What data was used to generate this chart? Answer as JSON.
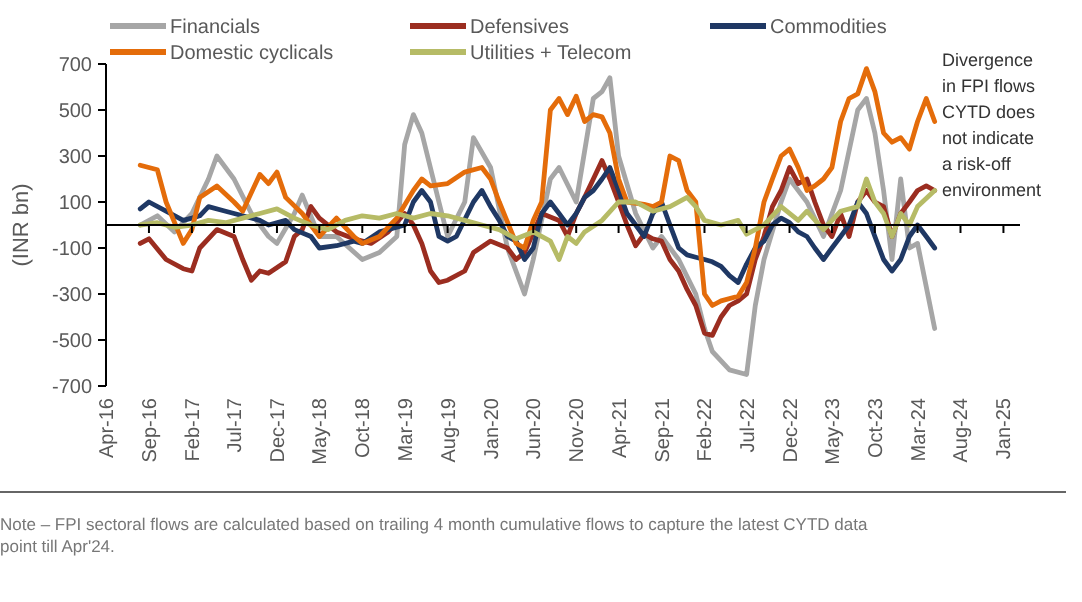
{
  "chart_data": {
    "type": "line",
    "ylabel": "(INR bn)",
    "annotations": [
      "Divergence in FPI flows CYTD does not indicate a risk-off environment",
      "Note – FPI sectoral flows are calculated based on trailing 4 month cumulative flows to capture the latest CYTD data point till Apr'24."
    ],
    "xlim": [
      "2016-04",
      "2025-03"
    ],
    "xticks": [
      {
        "value": "2016-04",
        "label": "Apr-16"
      },
      {
        "value": "2016-09",
        "label": "Sep-16"
      },
      {
        "value": "2017-02",
        "label": "Feb-17"
      },
      {
        "value": "2017-07",
        "label": "Jul-17"
      },
      {
        "value": "2017-12",
        "label": "Dec-17"
      },
      {
        "value": "2018-05",
        "label": "May-18"
      },
      {
        "value": "2018-10",
        "label": "Oct-18"
      },
      {
        "value": "2019-03",
        "label": "Mar-19"
      },
      {
        "value": "2019-08",
        "label": "Aug-19"
      },
      {
        "value": "2020-01",
        "label": "Jan-20"
      },
      {
        "value": "2020-06",
        "label": "Jun-20"
      },
      {
        "value": "2020-11",
        "label": "Nov-20"
      },
      {
        "value": "2021-04",
        "label": "Apr-21"
      },
      {
        "value": "2021-09",
        "label": "Sep-21"
      },
      {
        "value": "2022-02",
        "label": "Feb-22"
      },
      {
        "value": "2022-07",
        "label": "Jul-22"
      },
      {
        "value": "2022-12",
        "label": "Dec-22"
      },
      {
        "value": "2023-05",
        "label": "May-23"
      },
      {
        "value": "2023-10",
        "label": "Oct-23"
      },
      {
        "value": "2024-03",
        "label": "Mar-24"
      },
      {
        "value": "2024-08",
        "label": "Aug-24"
      },
      {
        "value": "2025-01",
        "label": "Jan-25"
      }
    ],
    "ylim": [
      -700,
      700
    ],
    "yticks": [
      -700,
      -500,
      -300,
      -100,
      100,
      300,
      500,
      700
    ],
    "legend": "top",
    "grid": false,
    "marker": "none",
    "line_style": "solid",
    "series": [
      {
        "name": "Financials",
        "color": "#a6a6a6",
        "x": [
          "2016-08",
          "2016-10",
          "2016-12",
          "2017-02",
          "2017-04",
          "2017-05",
          "2017-07",
          "2017-09",
          "2017-11",
          "2017-12",
          "2018-02",
          "2018-03",
          "2018-05",
          "2018-07",
          "2018-10",
          "2018-12",
          "2019-02",
          "2019-03",
          "2019-04",
          "2019-05",
          "2019-07",
          "2019-08",
          "2019-10",
          "2019-11",
          "2020-01",
          "2020-03",
          "2020-05",
          "2020-06",
          "2020-08",
          "2020-09",
          "2020-11",
          "2021-01",
          "2021-02",
          "2021-03",
          "2021-04",
          "2021-06",
          "2021-08",
          "2021-09",
          "2021-11",
          "2022-01",
          "2022-02",
          "2022-03",
          "2022-05",
          "2022-07",
          "2022-08",
          "2022-09",
          "2022-11",
          "2022-12",
          "2023-02",
          "2023-04",
          "2023-06",
          "2023-08",
          "2023-09",
          "2023-10",
          "2023-11",
          "2023-12",
          "2024-01",
          "2024-02",
          "2024-03",
          "2024-05"
        ],
        "values": [
          0,
          40,
          -30,
          50,
          200,
          300,
          200,
          50,
          -50,
          -80,
          50,
          130,
          -50,
          -50,
          -150,
          -120,
          -50,
          350,
          480,
          400,
          100,
          -50,
          100,
          380,
          250,
          -100,
          -300,
          -150,
          200,
          250,
          100,
          550,
          580,
          640,
          300,
          50,
          -100,
          -50,
          -150,
          -300,
          -450,
          -550,
          -630,
          -650,
          -350,
          -150,
          100,
          200,
          100,
          -50,
          150,
          500,
          550,
          400,
          150,
          -150,
          200,
          -100,
          -80,
          -450
        ]
      },
      {
        "name": "Defensives",
        "color": "#9b2d20",
        "x": [
          "2016-08",
          "2016-09",
          "2016-11",
          "2017-01",
          "2017-02",
          "2017-03",
          "2017-05",
          "2017-07",
          "2017-08",
          "2017-09",
          "2017-10",
          "2017-11",
          "2018-01",
          "2018-02",
          "2018-03",
          "2018-04",
          "2018-05",
          "2018-07",
          "2018-09",
          "2018-11",
          "2019-01",
          "2019-03",
          "2019-04",
          "2019-05",
          "2019-06",
          "2019-07",
          "2019-08",
          "2019-10",
          "2019-11",
          "2020-01",
          "2020-03",
          "2020-04",
          "2020-05",
          "2020-07",
          "2020-09",
          "2020-10",
          "2020-11",
          "2020-12",
          "2021-01",
          "2021-02",
          "2021-03",
          "2021-04",
          "2021-05",
          "2021-06",
          "2021-07",
          "2021-08",
          "2021-09",
          "2021-10",
          "2021-11",
          "2021-12",
          "2022-01",
          "2022-02",
          "2022-03",
          "2022-04",
          "2022-05",
          "2022-06",
          "2022-07",
          "2022-08",
          "2022-09",
          "2022-10",
          "2022-11",
          "2022-12",
          "2023-01",
          "2023-02",
          "2023-03",
          "2023-04",
          "2023-05",
          "2023-06",
          "2023-07",
          "2023-08",
          "2023-09",
          "2023-10",
          "2023-11",
          "2023-12",
          "2024-01",
          "2024-02",
          "2024-03",
          "2024-04",
          "2024-05"
        ],
        "values": [
          -80,
          -60,
          -150,
          -190,
          -200,
          -100,
          -20,
          -50,
          -150,
          -240,
          -200,
          -210,
          -160,
          -50,
          -20,
          80,
          30,
          -30,
          -60,
          -80,
          -30,
          50,
          0,
          -80,
          -200,
          -250,
          -240,
          -200,
          -120,
          -70,
          -100,
          -150,
          -120,
          50,
          20,
          -50,
          50,
          120,
          200,
          280,
          200,
          100,
          0,
          -90,
          -40,
          -60,
          -70,
          -150,
          -200,
          -280,
          -350,
          -470,
          -480,
          -400,
          -350,
          -330,
          -300,
          -150,
          -50,
          80,
          150,
          250,
          180,
          200,
          100,
          0,
          -50,
          50,
          -50,
          100,
          150,
          100,
          80,
          -50,
          50,
          100,
          150,
          170,
          150
        ]
      },
      {
        "name": "Commodities",
        "color": "#1f3864",
        "x": [
          "2016-08",
          "2016-09",
          "2016-11",
          "2017-01",
          "2017-02",
          "2017-03",
          "2017-04",
          "2017-06",
          "2017-08",
          "2017-10",
          "2017-11",
          "2018-01",
          "2018-02",
          "2018-04",
          "2018-05",
          "2018-07",
          "2018-09",
          "2018-10",
          "2018-12",
          "2019-02",
          "2019-03",
          "2019-04",
          "2019-05",
          "2019-06",
          "2019-07",
          "2019-08",
          "2019-09",
          "2019-11",
          "2019-12",
          "2020-01",
          "2020-02",
          "2020-03",
          "2020-04",
          "2020-05",
          "2020-06",
          "2020-07",
          "2020-08",
          "2020-09",
          "2020-10",
          "2020-11",
          "2020-12",
          "2021-01",
          "2021-02",
          "2021-03",
          "2021-04",
          "2021-05",
          "2021-06",
          "2021-07",
          "2021-08",
          "2021-09",
          "2021-10",
          "2021-11",
          "2021-12",
          "2022-01",
          "2022-02",
          "2022-03",
          "2022-04",
          "2022-05",
          "2022-06",
          "2022-07",
          "2022-08",
          "2022-09",
          "2022-10",
          "2022-11",
          "2022-12",
          "2023-01",
          "2023-02",
          "2023-03",
          "2023-04",
          "2023-05",
          "2023-06",
          "2023-07",
          "2023-08",
          "2023-09",
          "2023-10",
          "2023-11",
          "2023-12",
          "2024-01",
          "2024-02",
          "2024-03",
          "2024-04",
          "2024-05"
        ],
        "values": [
          70,
          100,
          60,
          20,
          30,
          40,
          80,
          60,
          40,
          20,
          0,
          20,
          -20,
          -50,
          -100,
          -90,
          -70,
          -80,
          -30,
          -10,
          0,
          100,
          150,
          100,
          -50,
          -70,
          -50,
          100,
          150,
          80,
          20,
          -50,
          -70,
          -150,
          -100,
          50,
          100,
          50,
          0,
          50,
          120,
          150,
          200,
          250,
          150,
          50,
          0,
          -50,
          50,
          100,
          0,
          -100,
          -130,
          -140,
          -150,
          -160,
          -180,
          -220,
          -250,
          -170,
          -100,
          -70,
          0,
          30,
          10,
          -30,
          -50,
          -100,
          -150,
          -100,
          -50,
          0,
          100,
          50,
          -50,
          -150,
          -200,
          -150,
          -50,
          0,
          -50,
          -100
        ]
      },
      {
        "name": "Domestic cyclicals",
        "color": "#e46c0a",
        "x": [
          "2016-08",
          "2016-10",
          "2016-11",
          "2017-01",
          "2017-02",
          "2017-03",
          "2017-05",
          "2017-07",
          "2017-08",
          "2017-10",
          "2017-11",
          "2017-12",
          "2018-01",
          "2018-03",
          "2018-05",
          "2018-07",
          "2018-09",
          "2018-10",
          "2018-12",
          "2019-02",
          "2019-04",
          "2019-05",
          "2019-06",
          "2019-08",
          "2019-10",
          "2019-12",
          "2020-01",
          "2020-02",
          "2020-04",
          "2020-05",
          "2020-06",
          "2020-07",
          "2020-08",
          "2020-09",
          "2020-10",
          "2020-11",
          "2020-12",
          "2021-01",
          "2021-02",
          "2021-03",
          "2021-04",
          "2021-05",
          "2021-07",
          "2021-08",
          "2021-09",
          "2021-10",
          "2021-11",
          "2021-12",
          "2022-01",
          "2022-02",
          "2022-03",
          "2022-04",
          "2022-06",
          "2022-07",
          "2022-08",
          "2022-09",
          "2022-10",
          "2022-11",
          "2022-12",
          "2023-01",
          "2023-02",
          "2023-03",
          "2023-04",
          "2023-05",
          "2023-06",
          "2023-07",
          "2023-08",
          "2023-09",
          "2023-10",
          "2023-11",
          "2023-12",
          "2024-01",
          "2024-02",
          "2024-03",
          "2024-04",
          "2024-05"
        ],
        "values": [
          260,
          240,
          100,
          -80,
          -20,
          120,
          170,
          100,
          60,
          220,
          180,
          230,
          120,
          50,
          -50,
          30,
          -50,
          -80,
          -50,
          30,
          150,
          200,
          170,
          180,
          230,
          250,
          200,
          100,
          -80,
          -100,
          20,
          100,
          500,
          550,
          480,
          560,
          450,
          480,
          470,
          400,
          200,
          100,
          90,
          80,
          100,
          300,
          280,
          150,
          100,
          -300,
          -350,
          -330,
          -310,
          -250,
          -100,
          100,
          200,
          300,
          330,
          250,
          150,
          170,
          200,
          250,
          450,
          550,
          570,
          680,
          580,
          400,
          360,
          380,
          330,
          450,
          550,
          450
        ]
      },
      {
        "name": "Utilities + Telecom",
        "color": "#b6bb66",
        "x": [
          "2016-08",
          "2016-10",
          "2016-12",
          "2017-02",
          "2017-04",
          "2017-06",
          "2017-08",
          "2017-10",
          "2017-12",
          "2018-02",
          "2018-04",
          "2018-06",
          "2018-08",
          "2018-10",
          "2018-12",
          "2019-02",
          "2019-04",
          "2019-06",
          "2019-08",
          "2019-10",
          "2019-12",
          "2020-02",
          "2020-04",
          "2020-06",
          "2020-08",
          "2020-09",
          "2020-10",
          "2020-11",
          "2020-12",
          "2021-02",
          "2021-04",
          "2021-06",
          "2021-08",
          "2021-10",
          "2021-12",
          "2022-01",
          "2022-02",
          "2022-04",
          "2022-06",
          "2022-07",
          "2022-09",
          "2022-11",
          "2023-01",
          "2023-02",
          "2023-04",
          "2023-06",
          "2023-08",
          "2023-09",
          "2023-10",
          "2023-11",
          "2023-12",
          "2024-01",
          "2024-02",
          "2024-03",
          "2024-05"
        ],
        "values": [
          0,
          10,
          -10,
          0,
          20,
          10,
          30,
          50,
          70,
          30,
          0,
          -20,
          20,
          40,
          30,
          50,
          30,
          50,
          40,
          20,
          0,
          -20,
          -60,
          -30,
          -70,
          -150,
          -50,
          -80,
          -30,
          20,
          100,
          100,
          60,
          80,
          120,
          80,
          20,
          0,
          20,
          -40,
          0,
          80,
          20,
          60,
          -20,
          60,
          80,
          200,
          100,
          50,
          -50,
          50,
          0,
          80,
          150
        ]
      }
    ]
  }
}
